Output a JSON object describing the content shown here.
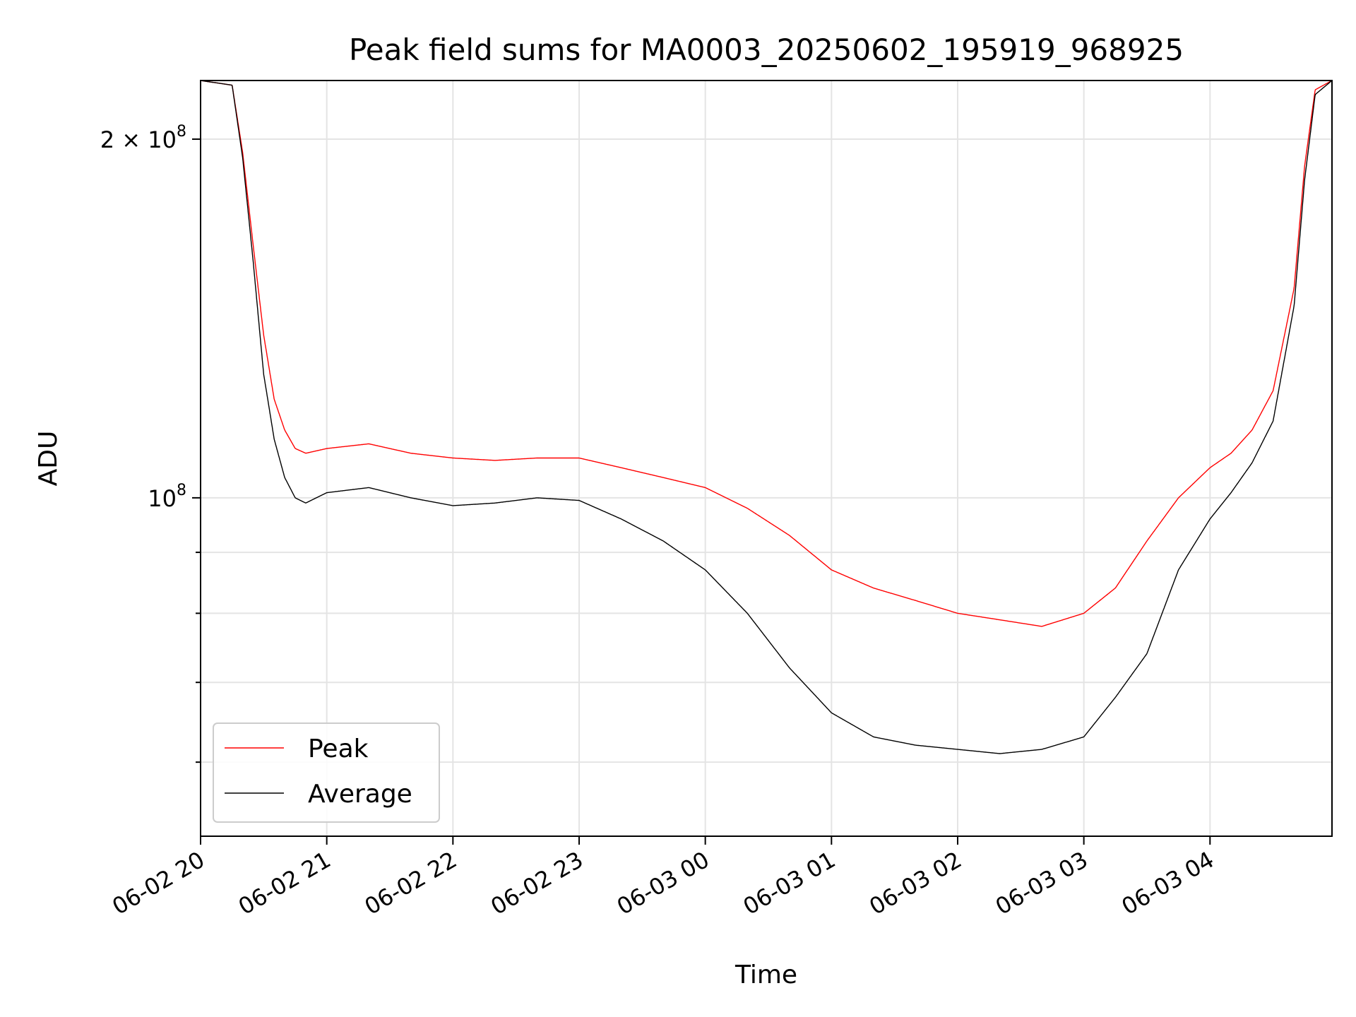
{
  "chart_data": {
    "type": "line",
    "title": "Peak field sums for MA0003_20250602_195919_968925",
    "xlabel": "Time",
    "ylabel": "ADU",
    "y_scale": "log",
    "ylim": [
      52000000,
      224000000
    ],
    "xlim": [
      "06-02 20:00",
      "06-03 04:58"
    ],
    "x_ticks": [
      "06-02 20",
      "06-02 21",
      "06-02 22",
      "06-02 23",
      "06-03 00",
      "06-03 01",
      "06-03 02",
      "06-03 03",
      "06-03 04"
    ],
    "y_ticks": [
      {
        "value": 200000000,
        "label_base": "2 × 10",
        "label_exp": "8"
      },
      {
        "value": 100000000,
        "label_base": "10",
        "label_exp": "8"
      }
    ],
    "y_minor_ticks": [
      60000000,
      70000000,
      80000000,
      90000000
    ],
    "grid": true,
    "legend_position": "lower-left",
    "series": [
      {
        "name": "Peak",
        "color": "#ff0000",
        "x": [
          "06-02 20:00",
          "06-02 20:15",
          "06-02 20:20",
          "06-02 20:25",
          "06-02 20:30",
          "06-02 20:35",
          "06-02 20:40",
          "06-02 20:45",
          "06-02 20:50",
          "06-02 21:00",
          "06-02 21:20",
          "06-02 21:40",
          "06-02 22:00",
          "06-02 22:20",
          "06-02 22:40",
          "06-02 23:00",
          "06-02 23:20",
          "06-02 23:40",
          "06-03 00:00",
          "06-03 00:20",
          "06-03 00:40",
          "06-03 01:00",
          "06-03 01:20",
          "06-03 01:40",
          "06-03 02:00",
          "06-03 02:20",
          "06-03 02:40",
          "06-03 03:00",
          "06-03 03:15",
          "06-03 03:30",
          "06-03 03:45",
          "06-03 04:00",
          "06-03 04:10",
          "06-03 04:20",
          "06-03 04:30",
          "06-03 04:40",
          "06-03 04:45",
          "06-03 04:50",
          "06-03 04:58"
        ],
        "values": [
          224000000,
          222000000,
          195000000,
          163000000,
          137000000,
          121000000,
          114000000,
          110000000,
          109000000,
          110000000,
          111000000,
          109000000,
          108000000,
          107500000,
          108000000,
          108000000,
          106000000,
          104000000,
          102000000,
          98000000,
          93000000,
          87000000,
          84000000,
          82000000,
          80000000,
          79000000,
          78000000,
          80000000,
          84000000,
          92000000,
          100000000,
          106000000,
          109000000,
          114000000,
          123000000,
          150000000,
          190000000,
          220000000,
          224000000
        ]
      },
      {
        "name": "Average",
        "color": "#000000",
        "x": [
          "06-02 20:00",
          "06-02 20:15",
          "06-02 20:20",
          "06-02 20:25",
          "06-02 20:30",
          "06-02 20:35",
          "06-02 20:40",
          "06-02 20:45",
          "06-02 20:50",
          "06-02 21:00",
          "06-02 21:20",
          "06-02 21:40",
          "06-02 22:00",
          "06-02 22:20",
          "06-02 22:40",
          "06-02 23:00",
          "06-02 23:20",
          "06-02 23:40",
          "06-03 00:00",
          "06-03 00:20",
          "06-03 00:40",
          "06-03 01:00",
          "06-03 01:20",
          "06-03 01:40",
          "06-03 02:00",
          "06-03 02:20",
          "06-03 02:40",
          "06-03 03:00",
          "06-03 03:15",
          "06-03 03:30",
          "06-03 03:45",
          "06-03 04:00",
          "06-03 04:10",
          "06-03 04:20",
          "06-03 04:30",
          "06-03 04:40",
          "06-03 04:45",
          "06-03 04:50",
          "06-03 04:58"
        ],
        "values": [
          224000000,
          222000000,
          193000000,
          158000000,
          127000000,
          112000000,
          104000000,
          100000000,
          99000000,
          101000000,
          102000000,
          100000000,
          98500000,
          99000000,
          100000000,
          99500000,
          96000000,
          92000000,
          87000000,
          80000000,
          72000000,
          66000000,
          63000000,
          62000000,
          61500000,
          61000000,
          61500000,
          63000000,
          68000000,
          74000000,
          87000000,
          96000000,
          101000000,
          107000000,
          116000000,
          145000000,
          185000000,
          218000000,
          224000000
        ]
      }
    ]
  }
}
